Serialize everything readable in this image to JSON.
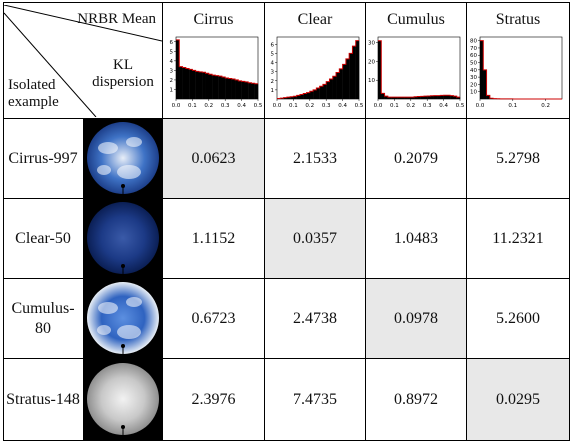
{
  "corner": {
    "top": "NRBR Mean",
    "middle": "KL dispersion",
    "bottom": "Isolated example"
  },
  "columns": [
    {
      "name": "Cirrus",
      "histogram": {
        "type": "histogram",
        "color": "#000000",
        "edge_color": "#cc0000",
        "bins": [
          0,
          0.02,
          0.04,
          0.06,
          0.08,
          0.1,
          0.12,
          0.14,
          0.16,
          0.18,
          0.2,
          0.22,
          0.24,
          0.26,
          0.28,
          0.3,
          0.32,
          0.34,
          0.36,
          0.38,
          0.4,
          0.42,
          0.44,
          0.46,
          0.48,
          0.5
        ],
        "values": [
          6.2,
          3.4,
          3.3,
          3.2,
          3.1,
          3.0,
          2.9,
          2.85,
          2.8,
          2.7,
          2.6,
          2.5,
          2.45,
          2.4,
          2.3,
          2.2,
          2.15,
          2.1,
          2.0,
          1.9,
          1.85,
          1.8,
          1.7,
          1.65,
          1.6
        ],
        "xlim": [
          0,
          0.5
        ],
        "xticks": [
          {
            "value": 0,
            "label": "0.0"
          },
          0.1,
          0.2,
          0.3,
          0.4,
          0.5
        ],
        "ylim": [
          0,
          6.5
        ],
        "yticks": [
          1,
          2,
          3,
          4,
          5,
          6
        ]
      }
    },
    {
      "name": "Clear",
      "histogram": {
        "type": "histogram",
        "color": "#000000",
        "edge_color": "#cc0000",
        "bins": [
          0,
          0.02,
          0.04,
          0.06,
          0.08,
          0.1,
          0.12,
          0.14,
          0.16,
          0.18,
          0.2,
          0.22,
          0.24,
          0.26,
          0.28,
          0.3,
          0.32,
          0.34,
          0.36,
          0.38,
          0.4,
          0.42,
          0.44,
          0.46,
          0.48,
          0.5
        ],
        "values": [
          0.05,
          0.1,
          0.15,
          0.2,
          0.25,
          0.3,
          0.4,
          0.5,
          0.6,
          0.7,
          0.85,
          1.0,
          1.2,
          1.4,
          1.6,
          1.9,
          2.2,
          2.5,
          2.9,
          3.3,
          3.8,
          4.4,
          5.0,
          5.8,
          6.4
        ],
        "xlim": [
          0,
          0.5
        ],
        "xticks": [
          {
            "value": 0,
            "label": "0.0"
          },
          0.1,
          0.2,
          0.3,
          0.4,
          0.5
        ],
        "ylim": [
          0,
          6.8
        ],
        "yticks": [
          1,
          2,
          3,
          4,
          5,
          6
        ]
      }
    },
    {
      "name": "Cumulus",
      "histogram": {
        "type": "histogram",
        "color": "#000000",
        "edge_color": "#cc0000",
        "bins": [
          0,
          0.02,
          0.04,
          0.06,
          0.08,
          0.1,
          0.12,
          0.14,
          0.16,
          0.18,
          0.2,
          0.22,
          0.24,
          0.26,
          0.28,
          0.3,
          0.32,
          0.34,
          0.36,
          0.38,
          0.4,
          0.42,
          0.44,
          0.46,
          0.48,
          0.5
        ],
        "values": [
          31,
          3,
          1.5,
          1,
          1,
          1,
          1,
          1,
          1,
          1,
          1,
          1.2,
          1.3,
          1.4,
          1.5,
          1.6,
          1.7,
          1.8,
          1.8,
          1.9,
          2,
          2,
          1.8,
          1.5,
          1
        ],
        "xlim": [
          0,
          0.5
        ],
        "xticks": [
          {
            "value": 0,
            "label": "0.0"
          },
          0.1,
          0.2,
          0.3,
          0.4,
          0.5
        ],
        "ylim": [
          0,
          33
        ],
        "yticks": [
          10,
          20,
          30
        ]
      }
    },
    {
      "name": "Stratus",
      "histogram": {
        "type": "histogram",
        "color": "#000000",
        "edge_color": "#cc0000",
        "bins": [
          0,
          0.01,
          0.02,
          0.03,
          0.04,
          0.05,
          0.06,
          0.07,
          0.08,
          0.09,
          0.1,
          0.11,
          0.12,
          0.13,
          0.14,
          0.15,
          0.16,
          0.17,
          0.18,
          0.19,
          0.2,
          0.21,
          0.22,
          0.23,
          0.24,
          0.25
        ],
        "values": [
          80,
          40,
          5,
          1,
          0.5,
          0.3,
          0.2,
          0.1,
          0.1,
          0.1,
          0,
          0,
          0,
          0,
          0,
          0,
          0,
          0,
          0,
          0,
          0,
          0,
          0,
          0,
          0
        ],
        "xlim": [
          0,
          0.25
        ],
        "xticks": [
          {
            "value": 0,
            "label": "0.0"
          },
          0.1,
          0.2
        ],
        "ylim": [
          0,
          85
        ],
        "yticks": [
          10,
          20,
          30,
          40,
          50,
          60,
          70,
          80
        ]
      }
    }
  ],
  "rows": [
    {
      "label": "Cirrus-997",
      "cells": [
        "0.0623",
        "2.1533",
        "0.2079",
        "5.2798"
      ]
    },
    {
      "label": "Clear-50",
      "cells": [
        "1.1152",
        "0.0357",
        "1.0483",
        "11.2321"
      ]
    },
    {
      "label": "Cumulus-80",
      "cells": [
        "0.6723",
        "2.4738",
        "0.0978",
        "5.2600"
      ]
    },
    {
      "label": "Stratus-148",
      "cells": [
        "2.3976",
        "7.4735",
        "0.8972",
        "0.0295"
      ]
    }
  ]
}
